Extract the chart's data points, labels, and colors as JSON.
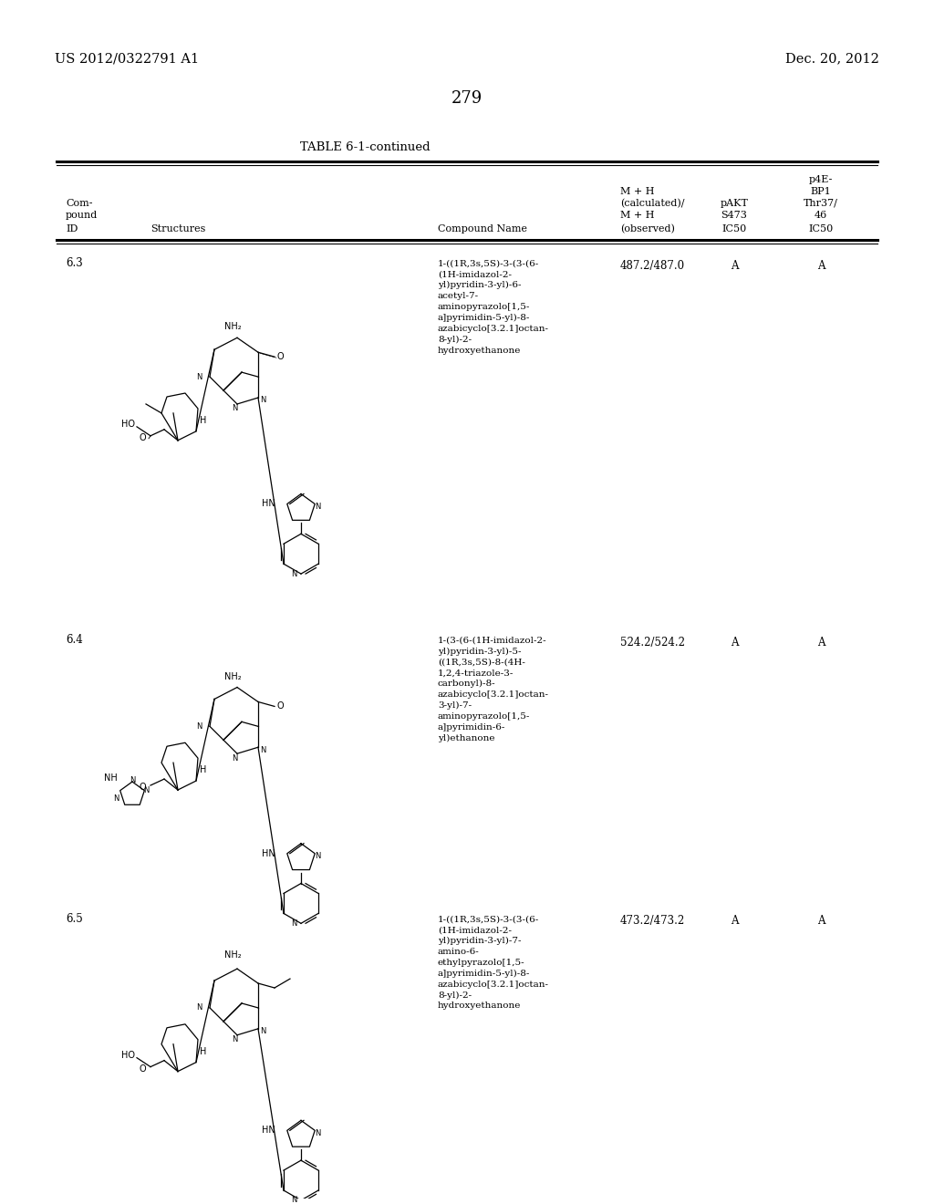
{
  "page_number": "279",
  "patent_number": "US 2012/0322791 A1",
  "patent_date": "Dec. 20, 2012",
  "table_title": "TABLE 6-1-continued",
  "header": {
    "col1_line1": "Com-",
    "col1_line2": "pound",
    "col1_line3": "ID",
    "col2": "Structures",
    "col3": "Compound Name",
    "col4_line1": "M + H",
    "col4_line2": "(calculated)/",
    "col4_line3": "M + H",
    "col4_line4": "(observed)",
    "col5_line1": "pAKT",
    "col5_line2": "S473",
    "col5_line3": "IC50",
    "col6_line1": "p4E-",
    "col6_line2": "BP1",
    "col6_line3": "Thr37/",
    "col6_line4": "46",
    "col6_line5": "IC50"
  },
  "rows": [
    {
      "id": "6.3",
      "compound_name": "1-((1R,3s,5S)-3-(3-(6-\n(1H-imidazol-2-\nyl)pyridin-3-yl)-6-\nacetyl-7-\naminopyrazolo[1,5-\na]pyrimidin-5-yl)-8-\nazabicyclo[3.2.1]octan-\n8-yl)-2-\nhydroxyethanone",
      "mh": "487.2/487.0",
      "pakt": "A",
      "p4e": "A"
    },
    {
      "id": "6.4",
      "compound_name": "1-(3-(6-(1H-imidazol-2-\nyl)pyridin-3-yl)-5-\n((1R,3s,5S)-8-(4H-\n1,2,4-triazole-3-\ncarbonyl)-8-\nazabicyclo[3.2.1]octan-\n3-yl)-7-\naminopyrazolo[1,5-\na]pyrimidin-6-\nyl)ethanone",
      "mh": "524.2/524.2",
      "pakt": "A",
      "p4e": "A"
    },
    {
      "id": "6.5",
      "compound_name": "1-((1R,3s,5S)-3-(3-(6-\n(1H-imidazol-2-\nyl)pyridin-3-yl)-7-\namino-6-\nethylpyrazolo[1,5-\na]pyrimidin-5-yl)-8-\nazabicyclo[3.2.1]octan-\n8-yl)-2-\nhydroxyethanone",
      "mh": "473.2/473.2",
      "pakt": "A",
      "p4e": "A"
    }
  ],
  "bg_color": "#ffffff",
  "text_color": "#000000",
  "line_color": "#000000"
}
